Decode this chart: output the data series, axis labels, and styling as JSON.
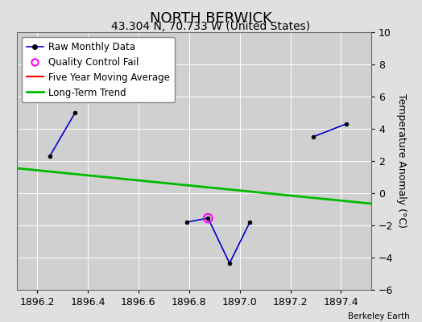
{
  "title": "NORTH BERWICK",
  "subtitle": "43.304 N, 70.733 W (United States)",
  "attribution": "Berkeley Earth",
  "xlim": [
    1896.12,
    1897.52
  ],
  "ylim": [
    -6,
    10
  ],
  "ylabel": "Temperature Anomaly (°C)",
  "xticks": [
    1896.2,
    1896.4,
    1896.6,
    1896.8,
    1897.0,
    1897.2,
    1897.4
  ],
  "yticks": [
    -6,
    -4,
    -2,
    0,
    2,
    4,
    6,
    8,
    10
  ],
  "raw_x": [
    1896.25,
    1896.35,
    null,
    1896.79,
    1896.875,
    1896.96,
    1897.04,
    null,
    1897.29,
    1897.42
  ],
  "raw_y": [
    2.3,
    5.0,
    null,
    -1.8,
    -1.55,
    -4.35,
    -1.8,
    null,
    3.5,
    4.3
  ],
  "qc_x": [
    1896.875
  ],
  "qc_y": [
    -1.55
  ],
  "trend_x": [
    1896.12,
    1897.52
  ],
  "trend_y": [
    1.55,
    -0.65
  ],
  "background_color": "#e0e0e0",
  "plot_bg_color": "#d0d0d0",
  "raw_line_color": "#0000cc",
  "raw_marker_color": "#000000",
  "qc_color": "#ff00ff",
  "moving_avg_color": "#ff0000",
  "trend_color": "#00bb00",
  "legend_bg": "#ffffff",
  "title_fontsize": 13,
  "subtitle_fontsize": 10,
  "axis_label_fontsize": 9,
  "tick_fontsize": 9,
  "legend_fontsize": 8.5
}
